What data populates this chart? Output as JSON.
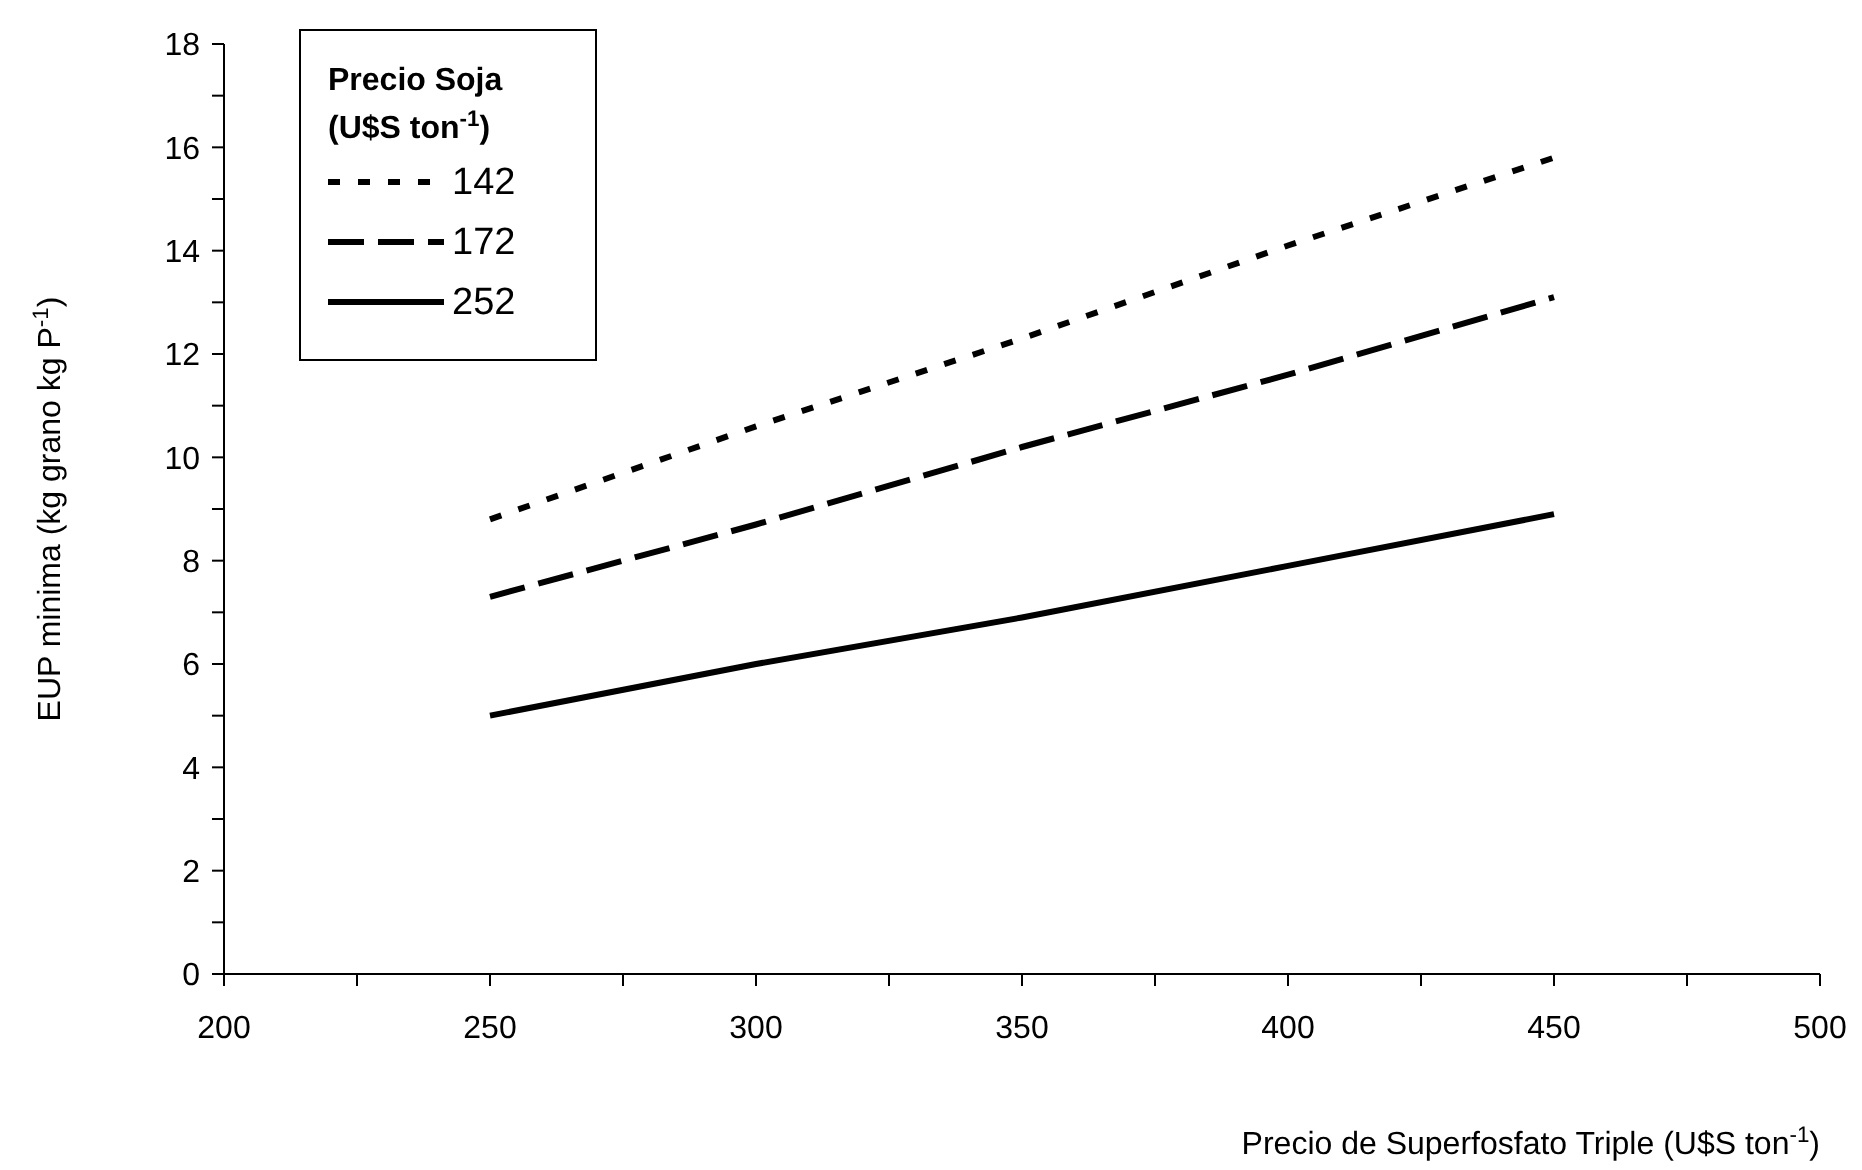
{
  "chart_data": {
    "type": "line",
    "xlabel": "Precio de Superfosfato Triple (U$S ton$^{-1}$)",
    "ylabel": "EUP minima (kg grano kg P$^{-1}$)",
    "legend_title": "Precio Soja (U$S ton$^{-1}$)",
    "legend": "top left",
    "marker": "none",
    "grid": false,
    "xlim": [
      200,
      500
    ],
    "xticks": [
      200,
      {
        "value": 225,
        "label": null
      },
      250,
      {
        "value": 275,
        "label": null
      },
      300,
      {
        "value": 325,
        "label": null
      },
      350,
      {
        "value": 375,
        "label": null
      },
      400,
      {
        "value": 425,
        "label": null
      },
      450,
      {
        "value": 475,
        "label": null
      },
      500
    ],
    "ylim": [
      0,
      18
    ],
    "yticks": [
      0,
      {
        "value": 1,
        "label": null
      },
      2,
      {
        "value": 3,
        "label": null
      },
      4,
      {
        "value": 5,
        "label": null
      },
      6,
      {
        "value": 7,
        "label": null
      },
      8,
      {
        "value": 9,
        "label": null
      },
      10,
      {
        "value": 11,
        "label": null
      },
      12,
      {
        "value": 13,
        "label": null
      },
      14,
      {
        "value": 15,
        "label": null
      },
      16,
      {
        "value": 17,
        "label": null
      },
      18
    ],
    "x": [
      250,
      300,
      350,
      400,
      450
    ],
    "series": [
      {
        "name": "142",
        "color": "#000000",
        "line_style": "dotted",
        "values": [
          8.8,
          10.6,
          12.3,
          14.1,
          15.8
        ]
      },
      {
        "name": "172",
        "color": "#000000",
        "line_style": "dashed",
        "values": [
          7.3,
          8.7,
          10.2,
          11.6,
          13.1
        ]
      },
      {
        "name": "252",
        "color": "#000000",
        "line_style": "solid",
        "values": [
          5.0,
          6.0,
          6.9,
          7.9,
          8.9
        ]
      }
    ]
  }
}
